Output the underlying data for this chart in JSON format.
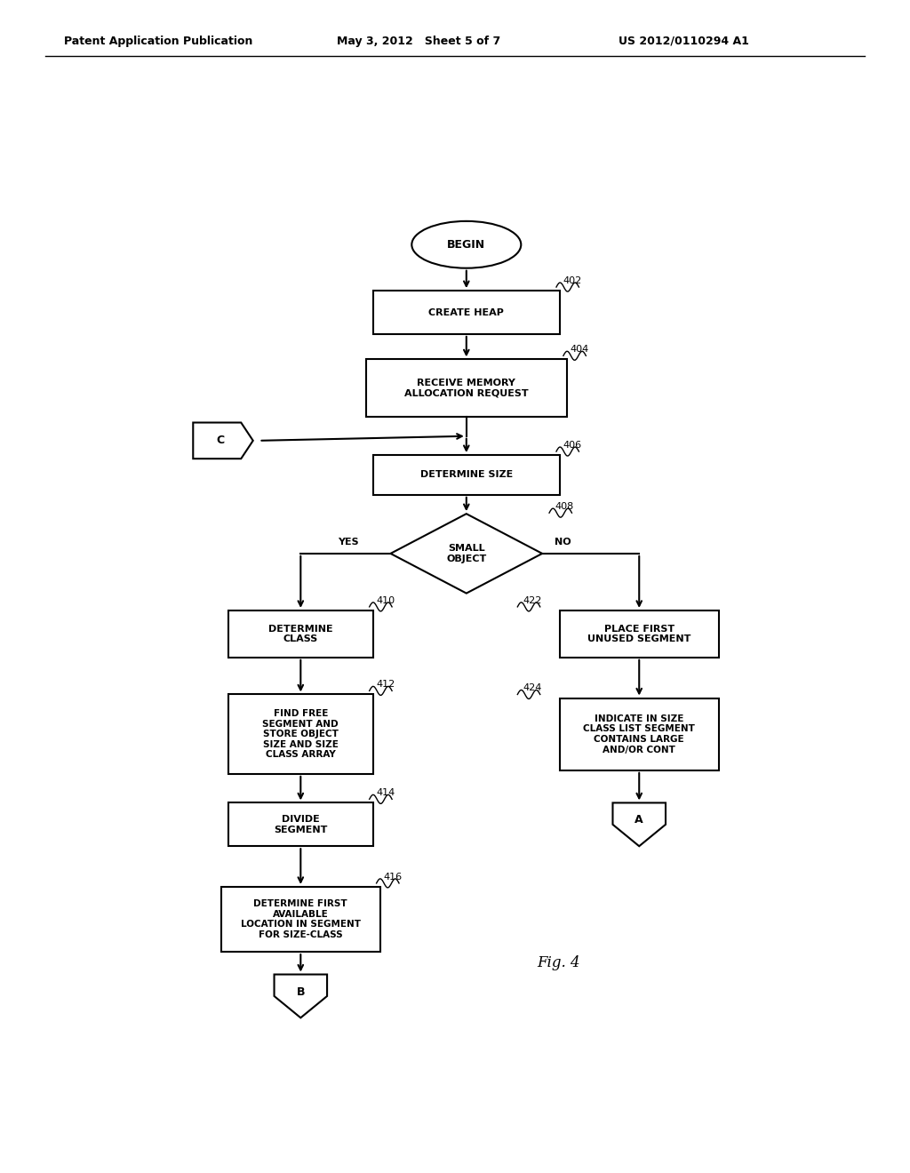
{
  "header_left": "Patent Application Publication",
  "header_mid": "May 3, 2012   Sheet 5 of 7",
  "header_right": "US 2012/0110294 A1",
  "fig_label": "Fig. 4",
  "bg_color": "#ffffff",
  "line_color": "#000000"
}
